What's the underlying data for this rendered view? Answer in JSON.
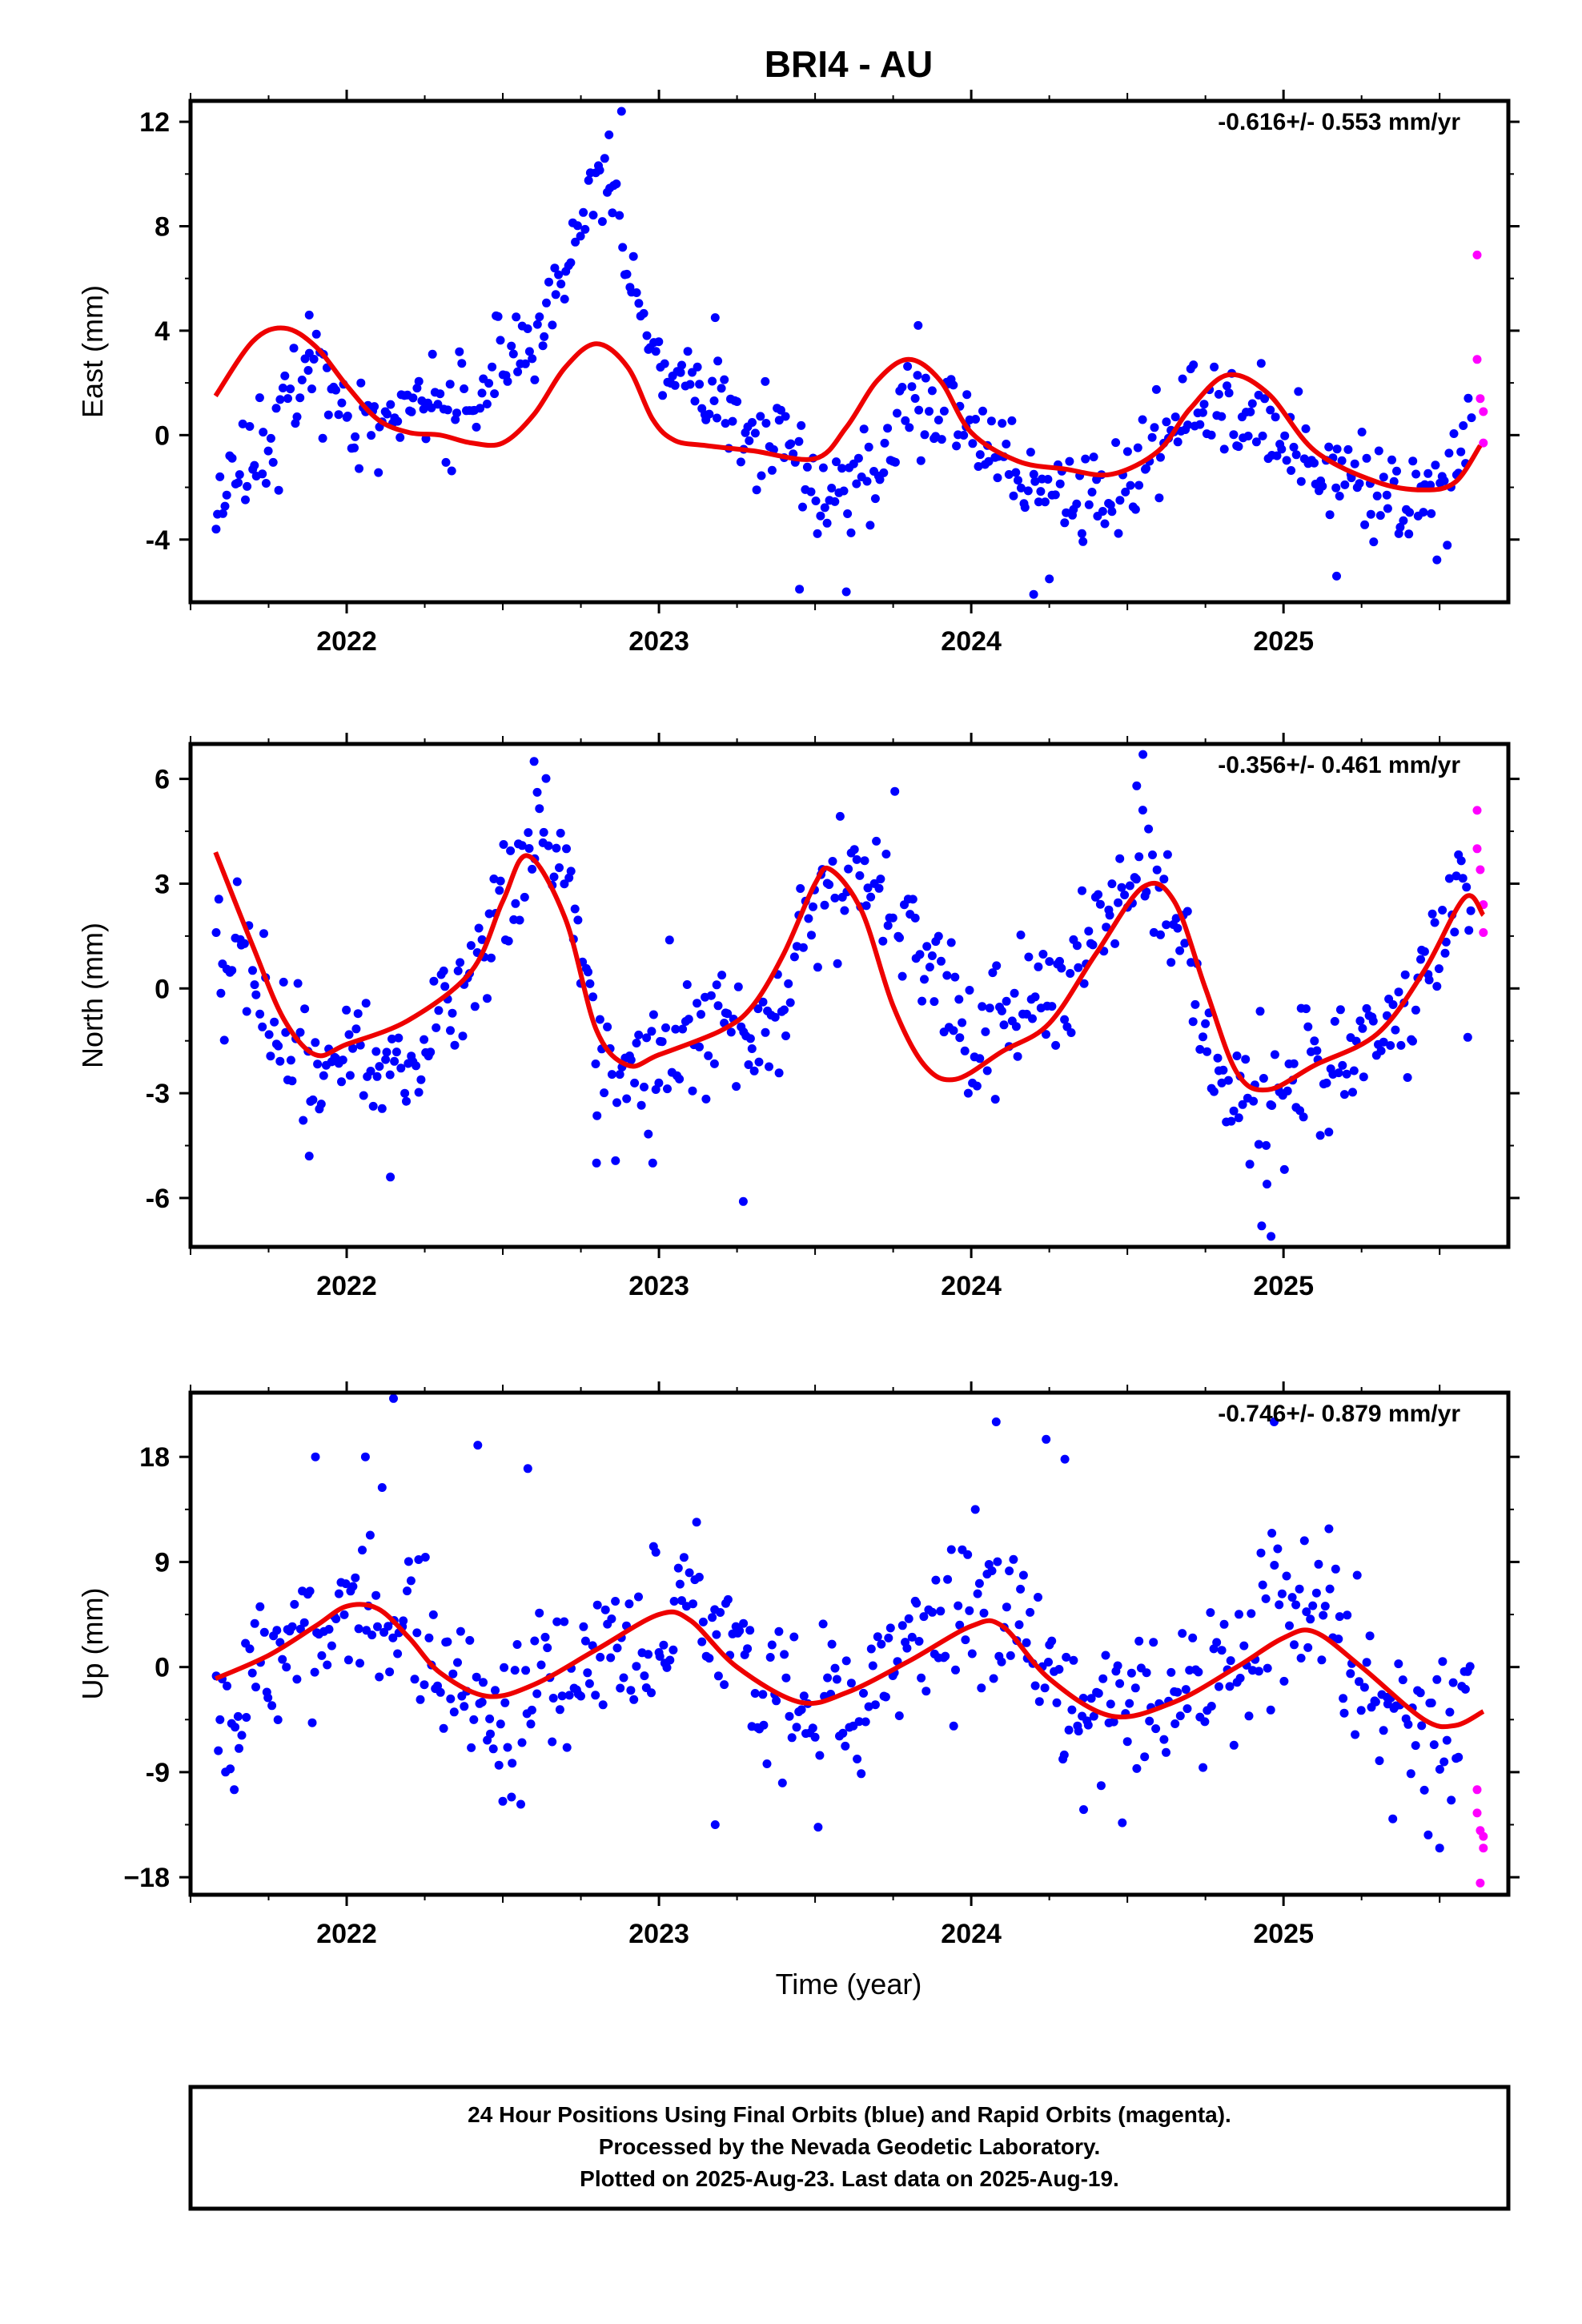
{
  "title": "BRI4 - AU",
  "xlabel": "Time (year)",
  "footer": {
    "line1": "24 Hour Positions Using Final Orbits (blue) and Rapid Orbits (magenta).",
    "line2": "Processed by the Nevada Geodetic Laboratory.",
    "line3": "Plotted on 2025-Aug-23. Last data on 2025-Aug-19."
  },
  "colors": {
    "final": "#0000ff",
    "rapid": "#ff00ff",
    "model": "#ee0000",
    "frame": "#000000"
  },
  "chart_data": [
    {
      "type": "scatter",
      "ylabel": "East (mm)",
      "rate": "-0.616+/- 0.553 mm/yr",
      "xlim": [
        2021.5,
        2025.72
      ],
      "ylim": [
        -6.4,
        12.8
      ],
      "xticks": [
        2022,
        2023,
        2024,
        2025
      ],
      "xtick_labels": [
        "2022",
        "2023",
        "2024",
        "2025"
      ],
      "yticks": [
        -4,
        0,
        4,
        8,
        12
      ],
      "ytick_labels": [
        "-4",
        "0",
        "4",
        "8",
        "12"
      ],
      "model": {
        "x": [
          2021.58,
          2021.7,
          2021.8,
          2021.9,
          2022.0,
          2022.1,
          2022.2,
          2022.3,
          2022.4,
          2022.5,
          2022.6,
          2022.7,
          2022.8,
          2022.9,
          2022.98,
          2023.05,
          2023.15,
          2023.3,
          2023.5,
          2023.6,
          2023.7,
          2023.8,
          2023.9,
          2024.0,
          2024.15,
          2024.3,
          2024.45,
          2024.6,
          2024.7,
          2024.82,
          2024.95,
          2025.1,
          2025.3,
          2025.45,
          2025.55,
          2025.63
        ],
        "y": [
          1.5,
          3.6,
          4.1,
          3.4,
          1.9,
          0.6,
          0.1,
          0.0,
          -0.3,
          -0.3,
          0.8,
          2.6,
          3.5,
          2.6,
          0.6,
          -0.2,
          -0.4,
          -0.6,
          -0.9,
          0.3,
          2.1,
          2.9,
          2.1,
          0.1,
          -1.0,
          -1.3,
          -1.5,
          -0.6,
          1.0,
          2.3,
          1.6,
          -0.6,
          -1.8,
          -2.1,
          -1.8,
          -0.4
        ]
      },
      "final": {
        "anchors_x": [
          2021.58,
          2021.7,
          2021.8,
          2021.9,
          2022.0,
          2022.1,
          2022.2,
          2022.3,
          2022.4,
          2022.5,
          2022.6,
          2022.7,
          2022.75,
          2022.8,
          2022.85,
          2022.9,
          2022.98,
          2023.1,
          2023.3,
          2023.45,
          2023.5,
          2023.6,
          2023.7,
          2023.8,
          2023.9,
          2024.0,
          2024.15,
          2024.3,
          2024.45,
          2024.6,
          2024.7,
          2024.8,
          2024.9,
          2025.0,
          2025.1,
          2025.3,
          2025.45,
          2025.55,
          2025.6
        ],
        "anchors_y": [
          -2.8,
          -1.0,
          1.0,
          2.5,
          1.0,
          0.3,
          1.0,
          1.5,
          1.5,
          2.5,
          3.5,
          6.5,
          8.5,
          9.5,
          9.0,
          6.0,
          3.5,
          2.0,
          0.0,
          -0.5,
          -2.5,
          -2.0,
          -1.0,
          1.0,
          1.0,
          0.0,
          -1.5,
          -2.5,
          -2.8,
          -0.5,
          1.0,
          1.0,
          0.5,
          0.2,
          -1.5,
          -2.2,
          -2.0,
          -1.5,
          0.0
        ],
        "noise": 0.9,
        "count": 520,
        "extremes": [
          [
            2022.88,
            12.4
          ],
          [
            2022.84,
            11.5
          ],
          [
            2023.45,
            -5.9
          ],
          [
            2023.6,
            -6.0
          ],
          [
            2024.2,
            -6.1
          ],
          [
            2025.17,
            -5.4
          ],
          [
            2021.88,
            4.6
          ],
          [
            2023.18,
            4.5
          ],
          [
            2023.83,
            4.2
          ]
        ]
      },
      "rapid": {
        "x": [
          2025.62,
          2025.62,
          2025.63,
          2025.64,
          2025.64
        ],
        "y": [
          6.9,
          2.9,
          1.4,
          0.9,
          -0.3
        ]
      }
    },
    {
      "type": "scatter",
      "ylabel": "North (mm)",
      "rate": "-0.356+/- 0.461 mm/yr",
      "xlim": [
        2021.5,
        2025.72
      ],
      "ylim": [
        -7.4,
        7.0
      ],
      "xticks": [
        2022,
        2023,
        2024,
        2025
      ],
      "xtick_labels": [
        "2022",
        "2023",
        "2024",
        "2025"
      ],
      "yticks": [
        -6,
        -3,
        0,
        3,
        6
      ],
      "ytick_labels": [
        "-6",
        "-3",
        "0",
        "3",
        "6"
      ],
      "model": {
        "x": [
          2021.58,
          2021.7,
          2021.8,
          2021.9,
          2022.0,
          2022.2,
          2022.4,
          2022.5,
          2022.58,
          2022.7,
          2022.8,
          2022.9,
          2023.0,
          2023.2,
          2023.3,
          2023.4,
          2023.5,
          2023.55,
          2023.65,
          2023.75,
          2023.85,
          2023.95,
          2024.1,
          2024.25,
          2024.4,
          2024.55,
          2024.65,
          2024.75,
          2024.85,
          2024.95,
          2025.1,
          2025.3,
          2025.45,
          2025.58,
          2025.64
        ],
        "y": [
          3.9,
          1.2,
          -0.9,
          -1.9,
          -1.6,
          -0.9,
          0.5,
          2.5,
          3.8,
          2.0,
          -1.2,
          -2.2,
          -1.9,
          -1.2,
          -0.5,
          1.0,
          3.0,
          3.4,
          2.2,
          -0.5,
          -2.2,
          -2.6,
          -1.8,
          -1.0,
          1.0,
          2.9,
          2.5,
          0.0,
          -2.4,
          -2.9,
          -2.2,
          -1.3,
          0.5,
          2.6,
          2.1
        ]
      },
      "final": {
        "anchors_x": [
          2021.58,
          2021.7,
          2021.8,
          2021.9,
          2022.0,
          2022.2,
          2022.4,
          2022.5,
          2022.58,
          2022.7,
          2022.8,
          2022.9,
          2023.0,
          2023.2,
          2023.3,
          2023.4,
          2023.5,
          2023.6,
          2023.7,
          2023.8,
          2023.9,
          2024.0,
          2024.2,
          2024.4,
          2024.55,
          2024.7,
          2024.8,
          2024.9,
          2025.0,
          2025.2,
          2025.4,
          2025.55,
          2025.6
        ],
        "anchors_y": [
          1.2,
          0.5,
          -1.0,
          -3.0,
          -2.0,
          -2.5,
          0.5,
          3.0,
          4.2,
          3.0,
          -1.0,
          -2.8,
          -2.0,
          -0.5,
          -1.5,
          -0.5,
          2.5,
          3.0,
          3.0,
          2.0,
          0.0,
          -1.5,
          0.0,
          1.0,
          3.5,
          1.0,
          -2.5,
          -3.5,
          -3.0,
          -2.0,
          -0.5,
          2.5,
          3.0
        ],
        "noise": 1.0,
        "count": 520,
        "extremes": [
          [
            2022.6,
            6.5
          ],
          [
            2024.55,
            6.7
          ],
          [
            2024.53,
            5.8
          ],
          [
            2022.8,
            -5.0
          ],
          [
            2022.98,
            -5.0
          ],
          [
            2023.27,
            -6.1
          ],
          [
            2024.93,
            -6.8
          ],
          [
            2024.96,
            -7.1
          ],
          [
            2022.14,
            -5.4
          ],
          [
            2021.88,
            -4.8
          ],
          [
            2025.59,
            -1.4
          ]
        ]
      },
      "rapid": {
        "x": [
          2025.62,
          2025.62,
          2025.63,
          2025.64,
          2025.64
        ],
        "y": [
          5.1,
          4.0,
          3.4,
          2.4,
          1.6
        ]
      }
    },
    {
      "type": "scatter",
      "ylabel": "Up (mm)",
      "rate": "-0.746+/- 0.879 mm/yr",
      "xlim": [
        2021.5,
        2025.72
      ],
      "ylim": [
        -19.5,
        23.5
      ],
      "xticks": [
        2022,
        2023,
        2024,
        2025
      ],
      "xtick_labels": [
        "2022",
        "2023",
        "2024",
        "2025"
      ],
      "yticks": [
        -18,
        -9,
        0,
        9,
        18
      ],
      "ytick_labels": [
        "−18",
        "-9",
        "0",
        "9",
        "18"
      ],
      "model": {
        "x": [
          2021.58,
          2021.75,
          2021.9,
          2022.0,
          2022.1,
          2022.2,
          2022.3,
          2022.45,
          2022.6,
          2022.8,
          2023.0,
          2023.1,
          2023.25,
          2023.45,
          2023.6,
          2023.8,
          2024.0,
          2024.1,
          2024.25,
          2024.45,
          2024.65,
          2024.85,
          2025.0,
          2025.1,
          2025.25,
          2025.45,
          2025.55,
          2025.64
        ],
        "y": [
          -1.0,
          1.0,
          3.5,
          5.2,
          5.0,
          2.5,
          -0.5,
          -2.5,
          -1.5,
          1.5,
          4.5,
          4.0,
          0.0,
          -3.0,
          -2.2,
          0.5,
          3.5,
          3.5,
          -1.0,
          -4.2,
          -3.0,
          0.0,
          2.5,
          3.0,
          0.0,
          -4.5,
          -5.0,
          -3.8
        ]
      },
      "final": {
        "anchors_x": [
          2021.58,
          2021.75,
          2021.9,
          2022.0,
          2022.1,
          2022.2,
          2022.3,
          2022.45,
          2022.6,
          2022.8,
          2023.0,
          2023.1,
          2023.25,
          2023.45,
          2023.6,
          2023.8,
          2024.0,
          2024.1,
          2024.25,
          2024.45,
          2024.65,
          2024.85,
          2025.0,
          2025.1,
          2025.25,
          2025.45,
          2025.55,
          2025.6
        ],
        "anchors_y": [
          -4.0,
          0.0,
          3.0,
          5.0,
          5.5,
          4.0,
          0.0,
          -4.0,
          -2.0,
          1.0,
          3.5,
          6.0,
          1.0,
          -5.0,
          -3.0,
          0.0,
          4.0,
          5.0,
          0.0,
          -4.0,
          -3.0,
          0.0,
          3.5,
          4.0,
          0.0,
          -6.0,
          -6.5,
          -2.0
        ],
        "noise": 3.4,
        "count": 520,
        "extremes": [
          [
            2022.15,
            23.0
          ],
          [
            2024.08,
            21.0
          ],
          [
            2024.24,
            19.5
          ],
          [
            2024.97,
            21.0
          ],
          [
            2022.42,
            19.0
          ],
          [
            2022.06,
            18.0
          ],
          [
            2021.9,
            18.0
          ],
          [
            2024.3,
            17.8
          ],
          [
            2022.58,
            17.0
          ],
          [
            2023.18,
            -13.5
          ],
          [
            2024.36,
            -12.2
          ],
          [
            2025.35,
            -13.0
          ],
          [
            2025.5,
            -15.5
          ],
          [
            2022.5,
            -11.5
          ],
          [
            2021.64,
            -10.5
          ]
        ]
      },
      "rapid": {
        "x": [
          2025.62,
          2025.62,
          2025.63,
          2025.64,
          2025.64,
          2025.63
        ],
        "y": [
          -10.5,
          -12.5,
          -14.0,
          -14.5,
          -15.5,
          -18.5
        ]
      }
    }
  ]
}
